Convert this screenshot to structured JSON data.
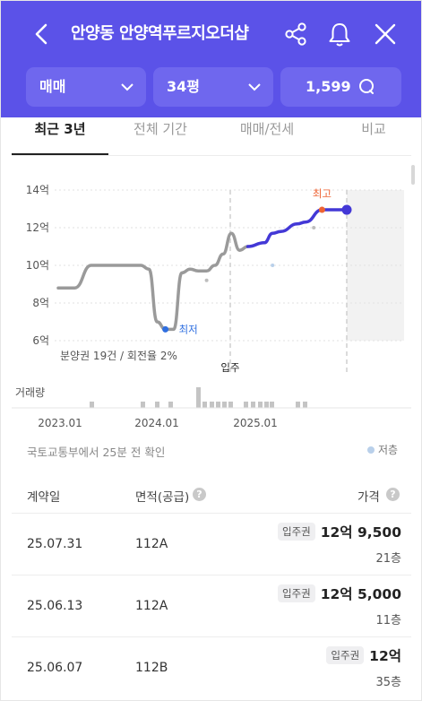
{
  "header": {
    "title": "안양동 안양역푸르지오더샵",
    "icons": [
      "back-icon",
      "share-icon",
      "bell-icon",
      "close-icon"
    ],
    "filters": {
      "deal_type": "매매",
      "size": "34평",
      "complex_count": "1,599"
    },
    "colors": {
      "header_bg": "#5b52e8",
      "filter_bg": "#6f67ee"
    }
  },
  "tabs": [
    "최근 3년",
    "전체 기간",
    "매매/전세",
    "비교"
  ],
  "chart_data": {
    "type": "line",
    "y_unit": "억",
    "yticks": [
      "14억",
      "12억",
      "10억",
      "8억",
      "6억"
    ],
    "ylim": [
      6,
      14
    ],
    "xticks": [
      "2023.01",
      "2024.01",
      "2025.01"
    ],
    "series": [
      {
        "segment": "before",
        "color": "#9a9a9a",
        "x": [
          "2022-11",
          "2023-01",
          "2023-03",
          "2023-05",
          "2023-07",
          "2023-09",
          "2023-10",
          "2023-11",
          "2023-12",
          "2024-01",
          "2024-02",
          "2024-03",
          "2024-04",
          "2024-05",
          "2024-06",
          "2024-07",
          "2024-08",
          "2024-09",
          "2024-10"
        ],
        "values": [
          8.8,
          8.8,
          10.0,
          10.0,
          10.0,
          10.0,
          9.8,
          7.0,
          6.6,
          6.6,
          9.6,
          9.8,
          9.7,
          9.7,
          10.0,
          10.6,
          11.7,
          10.8,
          11.0
        ]
      },
      {
        "segment": "after",
        "color": "#4338d6",
        "x": [
          "2024-10",
          "2024-12",
          "2025-01",
          "2025-02",
          "2025-04",
          "2025-05",
          "2025-07",
          "2025-10"
        ],
        "values": [
          11.0,
          11.2,
          11.7,
          11.8,
          12.2,
          12.3,
          12.95,
          12.95
        ]
      }
    ],
    "scatter_points": [
      {
        "x": "2024-05",
        "value": 9.2
      },
      {
        "x": "2025-01",
        "value": 10.0
      },
      {
        "x": "2025-06",
        "value": 12.0
      }
    ],
    "markers": {
      "low": {
        "label": "최저",
        "x": "2023-12",
        "value": 6.6
      },
      "high": {
        "label": "최고",
        "x": "2025-07",
        "value": 12.95
      },
      "current": {
        "x": "2025-10",
        "value": 12.95
      }
    },
    "annotations": {
      "supply": "분양권 19건 / 회전율 2%",
      "move_in": "입주"
    },
    "volume_label": "거래량",
    "volume": [
      1,
      1,
      1,
      1,
      3,
      1,
      1,
      1,
      1,
      1,
      1,
      1,
      1,
      1,
      1,
      1,
      1
    ]
  },
  "source_note": "국토교통부에서 25분 전 확인",
  "legend": "저층",
  "table": {
    "headers": [
      "계약일",
      "면적(공급)",
      "가격"
    ],
    "rows": [
      {
        "date": "25.07.31",
        "area": "112A",
        "badge": "입주권",
        "price": "12억 9,500",
        "floor": "21층"
      },
      {
        "date": "25.06.13",
        "area": "112A",
        "badge": "입주권",
        "price": "12억 5,000",
        "floor": "11층"
      },
      {
        "date": "25.06.07",
        "area": "112B",
        "badge": "입주권",
        "price": "12억",
        "floor": "35층"
      }
    ]
  }
}
